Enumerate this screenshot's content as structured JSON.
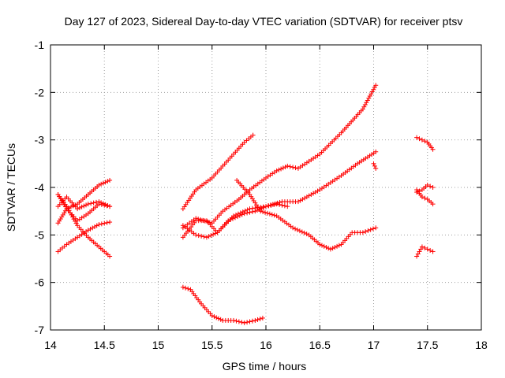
{
  "chart_data": {
    "type": "scatter",
    "title": "Day 127 of 2023, Sidereal Day-to-day VTEC variation (SDTVAR) for receiver ptsv",
    "xlabel": "GPS time / hours",
    "ylabel": "SDTVAR / TECUs",
    "xlim": [
      14,
      18
    ],
    "ylim": [
      -7,
      -1
    ],
    "xticks": [
      14,
      14.5,
      15,
      15.5,
      16,
      16.5,
      17,
      17.5,
      18
    ],
    "xtick_labels": [
      "14",
      "14.5",
      "15",
      "15.5",
      "16",
      "16.5",
      "17",
      "17.5",
      "18"
    ],
    "yticks": [
      -7,
      -6,
      -5,
      -4,
      -3,
      -2,
      -1
    ],
    "ytick_labels": [
      "-7",
      "-6",
      "-5",
      "-4",
      "-3",
      "-2",
      "-1"
    ],
    "grid": true,
    "marker": "+",
    "color": "#ff0000",
    "series": [
      {
        "name": "s1",
        "x": [
          14.07,
          14.15,
          14.25,
          14.35,
          14.45,
          14.55
        ],
        "y": [
          -4.15,
          -4.45,
          -4.35,
          -4.15,
          -3.95,
          -3.85
        ]
      },
      {
        "name": "s2",
        "x": [
          14.07,
          14.15,
          14.25,
          14.35,
          14.45,
          14.55
        ],
        "y": [
          -4.75,
          -4.45,
          -4.7,
          -4.55,
          -4.35,
          -4.4
        ]
      },
      {
        "name": "s3",
        "x": [
          14.07,
          14.15,
          14.25,
          14.35,
          14.45,
          14.55
        ],
        "y": [
          -4.4,
          -4.2,
          -4.45,
          -4.35,
          -4.3,
          -4.4
        ]
      },
      {
        "name": "s4",
        "x": [
          14.07,
          14.15,
          14.25,
          14.35,
          14.45,
          14.55
        ],
        "y": [
          -5.35,
          -5.2,
          -5.05,
          -4.9,
          -4.78,
          -4.73
        ]
      },
      {
        "name": "s5",
        "x": [
          14.07,
          14.15,
          14.25,
          14.35,
          14.45,
          14.55
        ],
        "y": [
          -4.15,
          -4.4,
          -4.8,
          -5.05,
          -5.25,
          -5.45
        ]
      },
      {
        "name": "s6",
        "x": [
          15.23,
          15.35,
          15.5,
          15.6,
          15.7,
          15.8,
          15.88
        ],
        "y": [
          -4.45,
          -4.05,
          -3.8,
          -3.55,
          -3.3,
          -3.05,
          -2.9
        ]
      },
      {
        "name": "s7",
        "x": [
          15.23,
          15.35,
          15.5,
          15.6,
          15.75,
          15.85,
          16.0,
          16.1,
          16.2,
          16.3,
          16.5,
          16.7,
          16.9,
          17.02
        ],
        "y": [
          -4.85,
          -4.65,
          -4.75,
          -4.5,
          -4.25,
          -4.05,
          -3.8,
          -3.65,
          -3.55,
          -3.6,
          -3.3,
          -2.85,
          -2.35,
          -1.85
        ]
      },
      {
        "name": "s8",
        "x": [
          15.23,
          15.35,
          15.45,
          15.55,
          15.7,
          15.85,
          16.0,
          16.15,
          16.3,
          16.5,
          16.7,
          16.85,
          17.02
        ],
        "y": [
          -5.05,
          -4.7,
          -4.7,
          -4.95,
          -4.6,
          -4.45,
          -4.4,
          -4.3,
          -4.3,
          -4.05,
          -3.75,
          -3.5,
          -3.25
        ]
      },
      {
        "name": "s9",
        "x": [
          15.23,
          15.35,
          15.45,
          15.55,
          15.65,
          15.8,
          15.9,
          16.0,
          16.1,
          16.2
        ],
        "y": [
          -4.8,
          -5.0,
          -5.05,
          -4.95,
          -4.7,
          -4.55,
          -4.5,
          -4.4,
          -4.35,
          -4.4
        ]
      },
      {
        "name": "s10",
        "x": [
          15.73,
          15.85,
          15.95,
          16.1,
          16.25,
          16.4,
          16.5,
          16.6,
          16.7,
          16.8,
          16.9,
          17.02
        ],
        "y": [
          -3.85,
          -4.15,
          -4.5,
          -4.6,
          -4.85,
          -5.0,
          -5.2,
          -5.3,
          -5.2,
          -4.95,
          -4.95,
          -4.85
        ]
      },
      {
        "name": "s11",
        "x": [
          15.23,
          15.3,
          15.4,
          15.5,
          15.6,
          15.7,
          15.8,
          15.9,
          15.97
        ],
        "y": [
          -6.1,
          -6.15,
          -6.45,
          -6.7,
          -6.8,
          -6.8,
          -6.85,
          -6.8,
          -6.75
        ]
      },
      {
        "name": "s12",
        "x": [
          17.0,
          17.02
        ],
        "y": [
          -3.5,
          -3.6
        ]
      },
      {
        "name": "s13",
        "x": [
          17.4,
          17.45,
          17.5,
          17.55
        ],
        "y": [
          -2.95,
          -3.0,
          -3.05,
          -3.2
        ]
      },
      {
        "name": "s14",
        "x": [
          17.4,
          17.45,
          17.5,
          17.55
        ],
        "y": [
          -4.1,
          -4.05,
          -3.95,
          -4.0
        ]
      },
      {
        "name": "s15",
        "x": [
          17.4,
          17.45,
          17.5,
          17.55
        ],
        "y": [
          -4.05,
          -4.2,
          -4.25,
          -4.35
        ]
      },
      {
        "name": "s16",
        "x": [
          17.4,
          17.45,
          17.5,
          17.55
        ],
        "y": [
          -5.45,
          -5.25,
          -5.3,
          -5.35
        ]
      }
    ]
  }
}
